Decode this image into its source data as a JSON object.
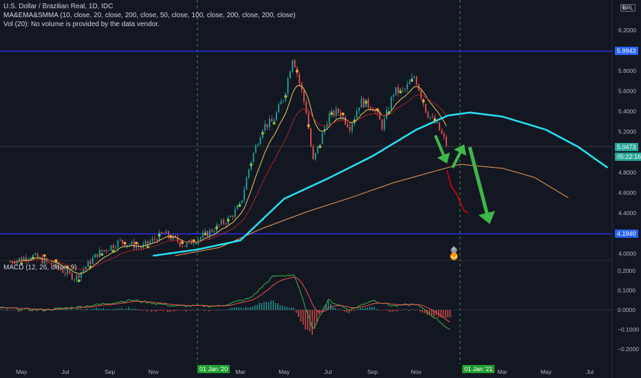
{
  "header": {
    "symbol_line": "U.S. Dollar / Brazilian Real, 1D, IDC",
    "ma_line": "MA&EMA&SMMA (10, close, 20, close, 200, close, 50, close, 100, close, 200, close, 200, close)",
    "vol_line": "Vol (20): No volume is provided by the data vendor.",
    "macd_line": "MACD (12, 26, close, 9)",
    "currency": "BRL",
    "top_clip_label": "6."
  },
  "price_axis": {
    "ticks": [
      "6.2000",
      "5.8000",
      "5.6000",
      "5.4000",
      "5.2000",
      "4.8000",
      "4.6000",
      "4.4000",
      "4.0000"
    ],
    "tick_values": [
      6.2,
      5.8,
      5.6,
      5.4,
      5.2,
      4.8,
      4.6,
      4.4,
      4.0
    ],
    "hline_top": "5.9943",
    "hline_bottom": "4.1940",
    "current_price": "5.0473",
    "countdown": "05:22:16"
  },
  "macd_axis": {
    "ticks": [
      "0.2000",
      "0.1000",
      "0.0000",
      "−0.1000",
      "−0.2000"
    ],
    "tick_values": [
      0.2,
      0.1,
      0.0,
      -0.1,
      -0.2
    ]
  },
  "time_axis": {
    "labels": [
      "May",
      "Jul",
      "Sep",
      "Nov",
      "01 Jan '20",
      "Mar",
      "May",
      "Jul",
      "Sep",
      "Nov",
      "01 Jan '21",
      "Mar",
      "May",
      "Jul"
    ],
    "highlighted": [
      "01 Jan '20",
      "01 Jan '21"
    ]
  },
  "event_marker": "2",
  "colors": {
    "background": "#131722",
    "hline": "#2a2eff",
    "ma_slow": "#26e0f0",
    "ma_mid": "#f5a054",
    "arrow": "#3fb64a",
    "projection": "#e00000",
    "up_candle": "#26a69a",
    "down_candle": "#ef5350",
    "macd_line": "#3fb64a",
    "signal_line": "#ef5350",
    "date_tag": "#1e9e2e",
    "price_tag": "#2962ff",
    "current_tag": "#26a69a"
  },
  "chart_data": {
    "type": "candlestick",
    "title": "U.S. Dollar / Brazilian Real, 1D, IDC",
    "x_range": [
      "2019-04",
      "2021-08"
    ],
    "y_range": [
      3.95,
      6.3
    ],
    "price_path": [
      [
        "2019-04-15",
        3.92
      ],
      [
        "2019-05-15",
        3.98
      ],
      [
        "2019-06-15",
        3.88
      ],
      [
        "2019-07-15",
        3.76
      ],
      [
        "2019-08-15",
        4.0
      ],
      [
        "2019-09-15",
        4.12
      ],
      [
        "2019-10-15",
        4.06
      ],
      [
        "2019-11-15",
        4.2
      ],
      [
        "2019-12-15",
        4.08
      ],
      [
        "2020-01-15",
        4.2
      ],
      [
        "2020-02-15",
        4.35
      ],
      [
        "2020-03-01",
        4.48
      ],
      [
        "2020-03-15",
        4.9
      ],
      [
        "2020-04-01",
        5.25
      ],
      [
        "2020-04-15",
        5.3
      ],
      [
        "2020-05-01",
        5.55
      ],
      [
        "2020-05-13",
        5.95
      ],
      [
        "2020-06-01",
        5.4
      ],
      [
        "2020-06-10",
        4.9
      ],
      [
        "2020-06-20",
        5.1
      ],
      [
        "2020-07-01",
        5.35
      ],
      [
        "2020-07-15",
        5.4
      ],
      [
        "2020-08-01",
        5.25
      ],
      [
        "2020-08-15",
        5.5
      ],
      [
        "2020-09-01",
        5.45
      ],
      [
        "2020-09-15",
        5.25
      ],
      [
        "2020-10-01",
        5.6
      ],
      [
        "2020-10-15",
        5.6
      ],
      [
        "2020-10-30",
        5.75
      ],
      [
        "2020-11-15",
        5.4
      ],
      [
        "2020-12-01",
        5.25
      ],
      [
        "2020-12-15",
        5.05
      ]
    ],
    "hlines": [
      5.9943,
      4.194
    ],
    "ma_slow": [
      [
        "2019-11-01",
        3.98
      ],
      [
        "2020-01-01",
        4.04
      ],
      [
        "2020-03-01",
        4.13
      ],
      [
        "2020-05-01",
        4.54
      ],
      [
        "2020-07-01",
        4.74
      ],
      [
        "2020-09-01",
        4.96
      ],
      [
        "2020-11-01",
        5.22
      ],
      [
        "2020-12-15",
        5.36
      ],
      [
        "2021-01-15",
        5.39
      ],
      [
        "2021-03-01",
        5.35
      ],
      [
        "2021-05-01",
        5.22
      ],
      [
        "2021-06-15",
        5.05
      ],
      [
        "2021-07-25",
        4.85
      ]
    ],
    "ma_mid": [
      [
        "2019-12-01",
        3.98
      ],
      [
        "2020-02-01",
        4.06
      ],
      [
        "2020-04-01",
        4.25
      ],
      [
        "2020-06-01",
        4.41
      ],
      [
        "2020-08-01",
        4.55
      ],
      [
        "2020-10-01",
        4.7
      ],
      [
        "2020-12-01",
        4.82
      ],
      [
        "2021-01-01",
        4.88
      ],
      [
        "2021-03-01",
        4.84
      ],
      [
        "2021-04-15",
        4.75
      ],
      [
        "2021-06-01",
        4.55
      ]
    ],
    "projection": [
      [
        "2020-12-14",
        4.82
      ],
      [
        "2020-12-20",
        4.66
      ],
      [
        "2020-12-28",
        4.58
      ],
      [
        "2021-01-06",
        4.43
      ],
      [
        "2021-01-12",
        4.4
      ]
    ],
    "macd": {
      "range": [
        -0.23,
        0.23
      ],
      "macd_path": [
        [
          "2019-04-01",
          0.01
        ],
        [
          "2019-06-01",
          0.0
        ],
        [
          "2019-08-01",
          0.02
        ],
        [
          "2019-10-01",
          0.05
        ],
        [
          "2019-12-01",
          0.02
        ],
        [
          "2020-02-01",
          0.02
        ],
        [
          "2020-03-15",
          0.06
        ],
        [
          "2020-04-15",
          0.17
        ],
        [
          "2020-05-15",
          0.18
        ],
        [
          "2020-06-10",
          -0.1
        ],
        [
          "2020-07-01",
          0.05
        ],
        [
          "2020-08-01",
          0.0
        ],
        [
          "2020-09-01",
          0.05
        ],
        [
          "2020-10-01",
          0.02
        ],
        [
          "2020-11-01",
          0.03
        ],
        [
          "2020-12-01",
          -0.05
        ],
        [
          "2020-12-20",
          -0.11
        ]
      ]
    }
  }
}
